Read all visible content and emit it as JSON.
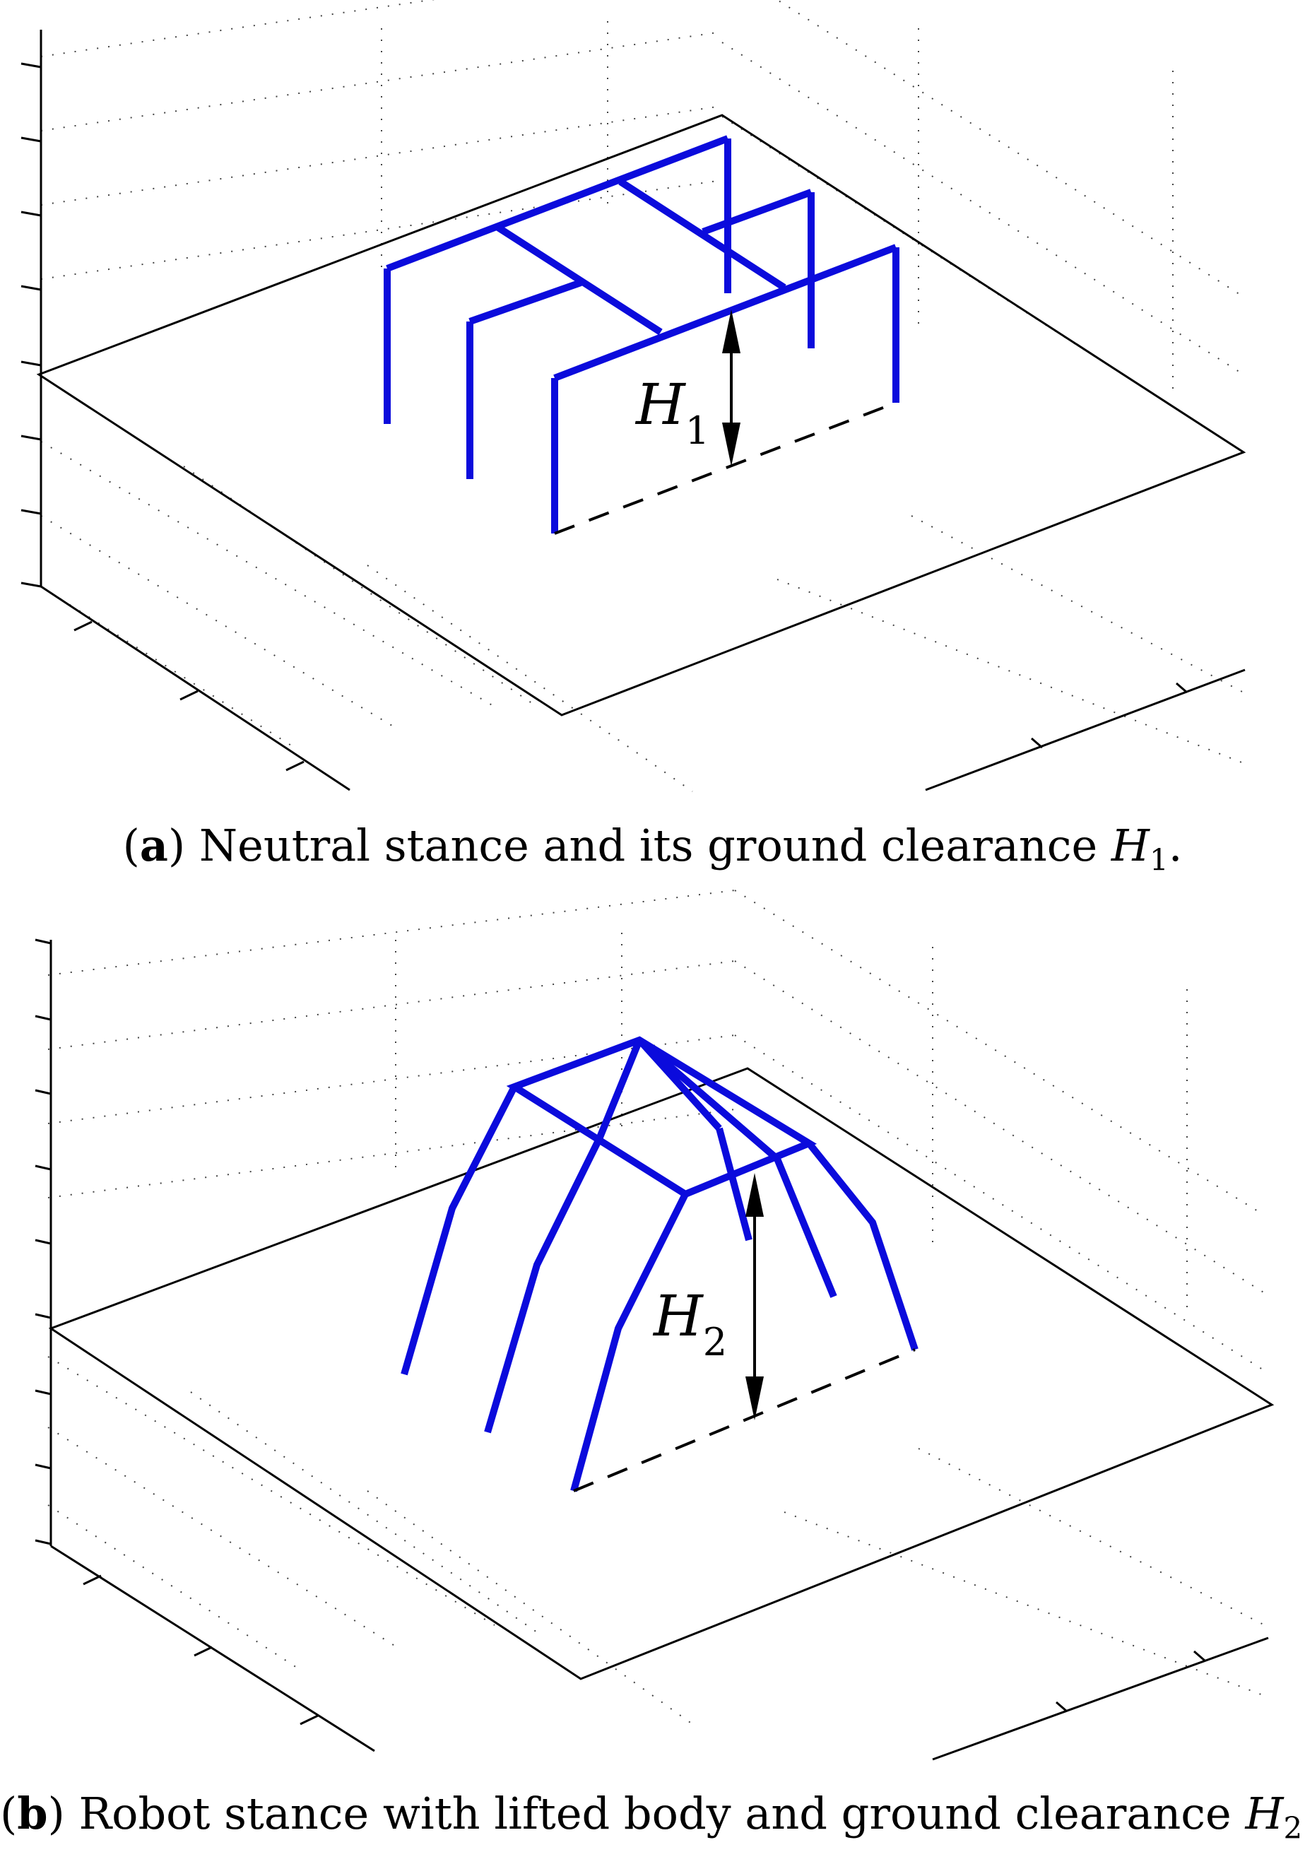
{
  "figure": {
    "panel_a": {
      "caption": {
        "tag": "a",
        "text": "Neutral stance and its ground clearance ",
        "symbol": "H",
        "subscript": "1",
        "end": "."
      },
      "height_label": {
        "symbol": "H",
        "subscript": "1"
      }
    },
    "panel_b": {
      "caption": {
        "tag": "b",
        "text": "Robot stance with lifted body and ground clearance ",
        "symbol": "H",
        "subscript": "2",
        "end": "."
      },
      "height_label": {
        "symbol": "H",
        "subscript": "2"
      }
    },
    "colors": {
      "robot": "#0b0bdc",
      "lines": "#000000",
      "grid": "#444444"
    }
  }
}
